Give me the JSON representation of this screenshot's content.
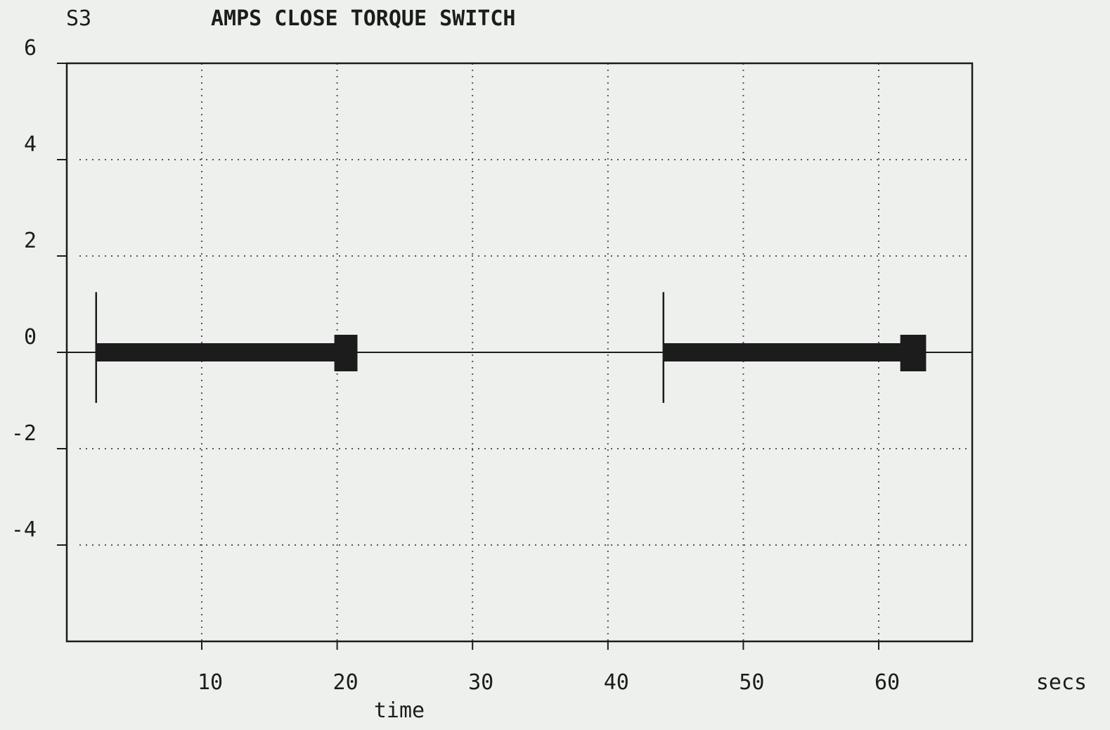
{
  "chart_data": {
    "type": "line",
    "plot_id": "S3",
    "title": "AMPS CLOSE TORQUE SWITCH",
    "xlabel": "time",
    "x_unit": "secs",
    "xlim": [
      0,
      67
    ],
    "ylim": [
      -6,
      6
    ],
    "x_ticks": [
      10,
      20,
      30,
      40,
      50,
      60
    ],
    "x_tick_labels": [
      "10",
      "20",
      "30",
      "40",
      "50",
      "60"
    ],
    "y_ticks": [
      6,
      4,
      2,
      0,
      -2,
      -4
    ],
    "y_tick_labels": [
      "6",
      "4",
      "2",
      "0",
      "-2",
      "-4"
    ],
    "grid": true,
    "baseline": 0,
    "series": [
      {
        "segments": [
          {
            "start": 2.2,
            "end": 20.0,
            "value": 0,
            "spike_low": -1.05,
            "spike_high": 1.25,
            "end_block": [
              20.0,
              21.5
            ]
          },
          {
            "start": 44.1,
            "end": 61.8,
            "value": 0,
            "spike_low": -1.05,
            "spike_high": 1.25,
            "end_block": [
              61.8,
              63.5
            ]
          }
        ]
      }
    ],
    "colors": {
      "background": "#eef0ee",
      "ink": "#1c1c1c",
      "grid": "#555555"
    }
  }
}
